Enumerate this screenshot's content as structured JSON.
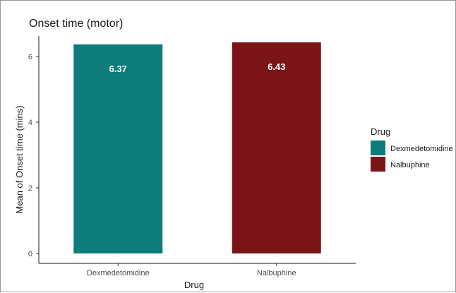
{
  "chart_data": {
    "type": "bar",
    "title": "Onset time (motor)",
    "xlabel": "Drug",
    "ylabel": "Mean of Onset time (mins)",
    "categories": [
      "Dexmedetomidine",
      "Nalbuphine"
    ],
    "values": [
      6.37,
      6.43
    ],
    "data_labels": [
      "6.37",
      "6.43"
    ],
    "colors": [
      "#0e7c7b",
      "#7b1416"
    ],
    "ylim": [
      0,
      6.6
    ],
    "yticks": [
      0,
      2,
      4,
      6
    ],
    "grid": false,
    "legend": {
      "title": "Drug",
      "entries": [
        "Dexmedetomidine",
        "Nalbuphine"
      ],
      "placement": "right"
    }
  }
}
